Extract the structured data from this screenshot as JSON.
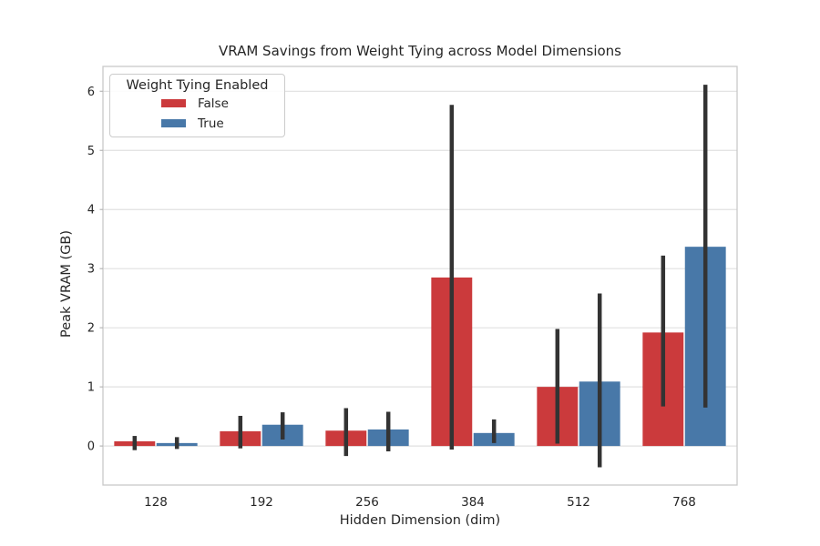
{
  "figure": {
    "title": "VRAM Savings from Weight Tying across Model Dimensions"
  },
  "legend": {
    "title": "Weight Tying Enabled",
    "entries": [
      {
        "label": "False",
        "color": "#cb3a3c"
      },
      {
        "label": "True",
        "color": "#4878a8"
      }
    ]
  },
  "chart_data": {
    "type": "bar",
    "title": "VRAM Savings from Weight Tying across Model Dimensions",
    "xlabel": "Hidden Dimension (dim)",
    "ylabel": "Peak VRAM (GB)",
    "categories": [
      "128",
      "192",
      "256",
      "384",
      "512",
      "768"
    ],
    "series": [
      {
        "name": "False",
        "color": "#cb3a3c",
        "values": [
          0.08,
          0.25,
          0.26,
          2.85,
          1.0,
          1.92
        ],
        "error_low": [
          -0.07,
          -0.04,
          -0.17,
          -0.06,
          0.04,
          0.67
        ],
        "error_high": [
          0.17,
          0.51,
          0.64,
          5.77,
          1.98,
          3.22
        ]
      },
      {
        "name": "True",
        "color": "#4878a8",
        "values": [
          0.05,
          0.36,
          0.28,
          0.22,
          1.09,
          3.37
        ],
        "error_low": [
          -0.05,
          0.11,
          -0.09,
          0.05,
          -0.36,
          0.65
        ],
        "error_high": [
          0.15,
          0.57,
          0.58,
          0.45,
          2.58,
          6.11
        ]
      }
    ],
    "yticks": [
      0,
      1,
      2,
      3,
      4,
      5,
      6
    ],
    "ylim": [
      -0.66,
      6.42
    ],
    "grid": true,
    "legend_position": "upper left",
    "legend_title": "Weight Tying Enabled",
    "error_color": "#333333",
    "grid_color": "#e0e0e0",
    "spine_color": "#c9c9c9",
    "tick_color": "#b5b5b5",
    "text_color": "#262626"
  }
}
